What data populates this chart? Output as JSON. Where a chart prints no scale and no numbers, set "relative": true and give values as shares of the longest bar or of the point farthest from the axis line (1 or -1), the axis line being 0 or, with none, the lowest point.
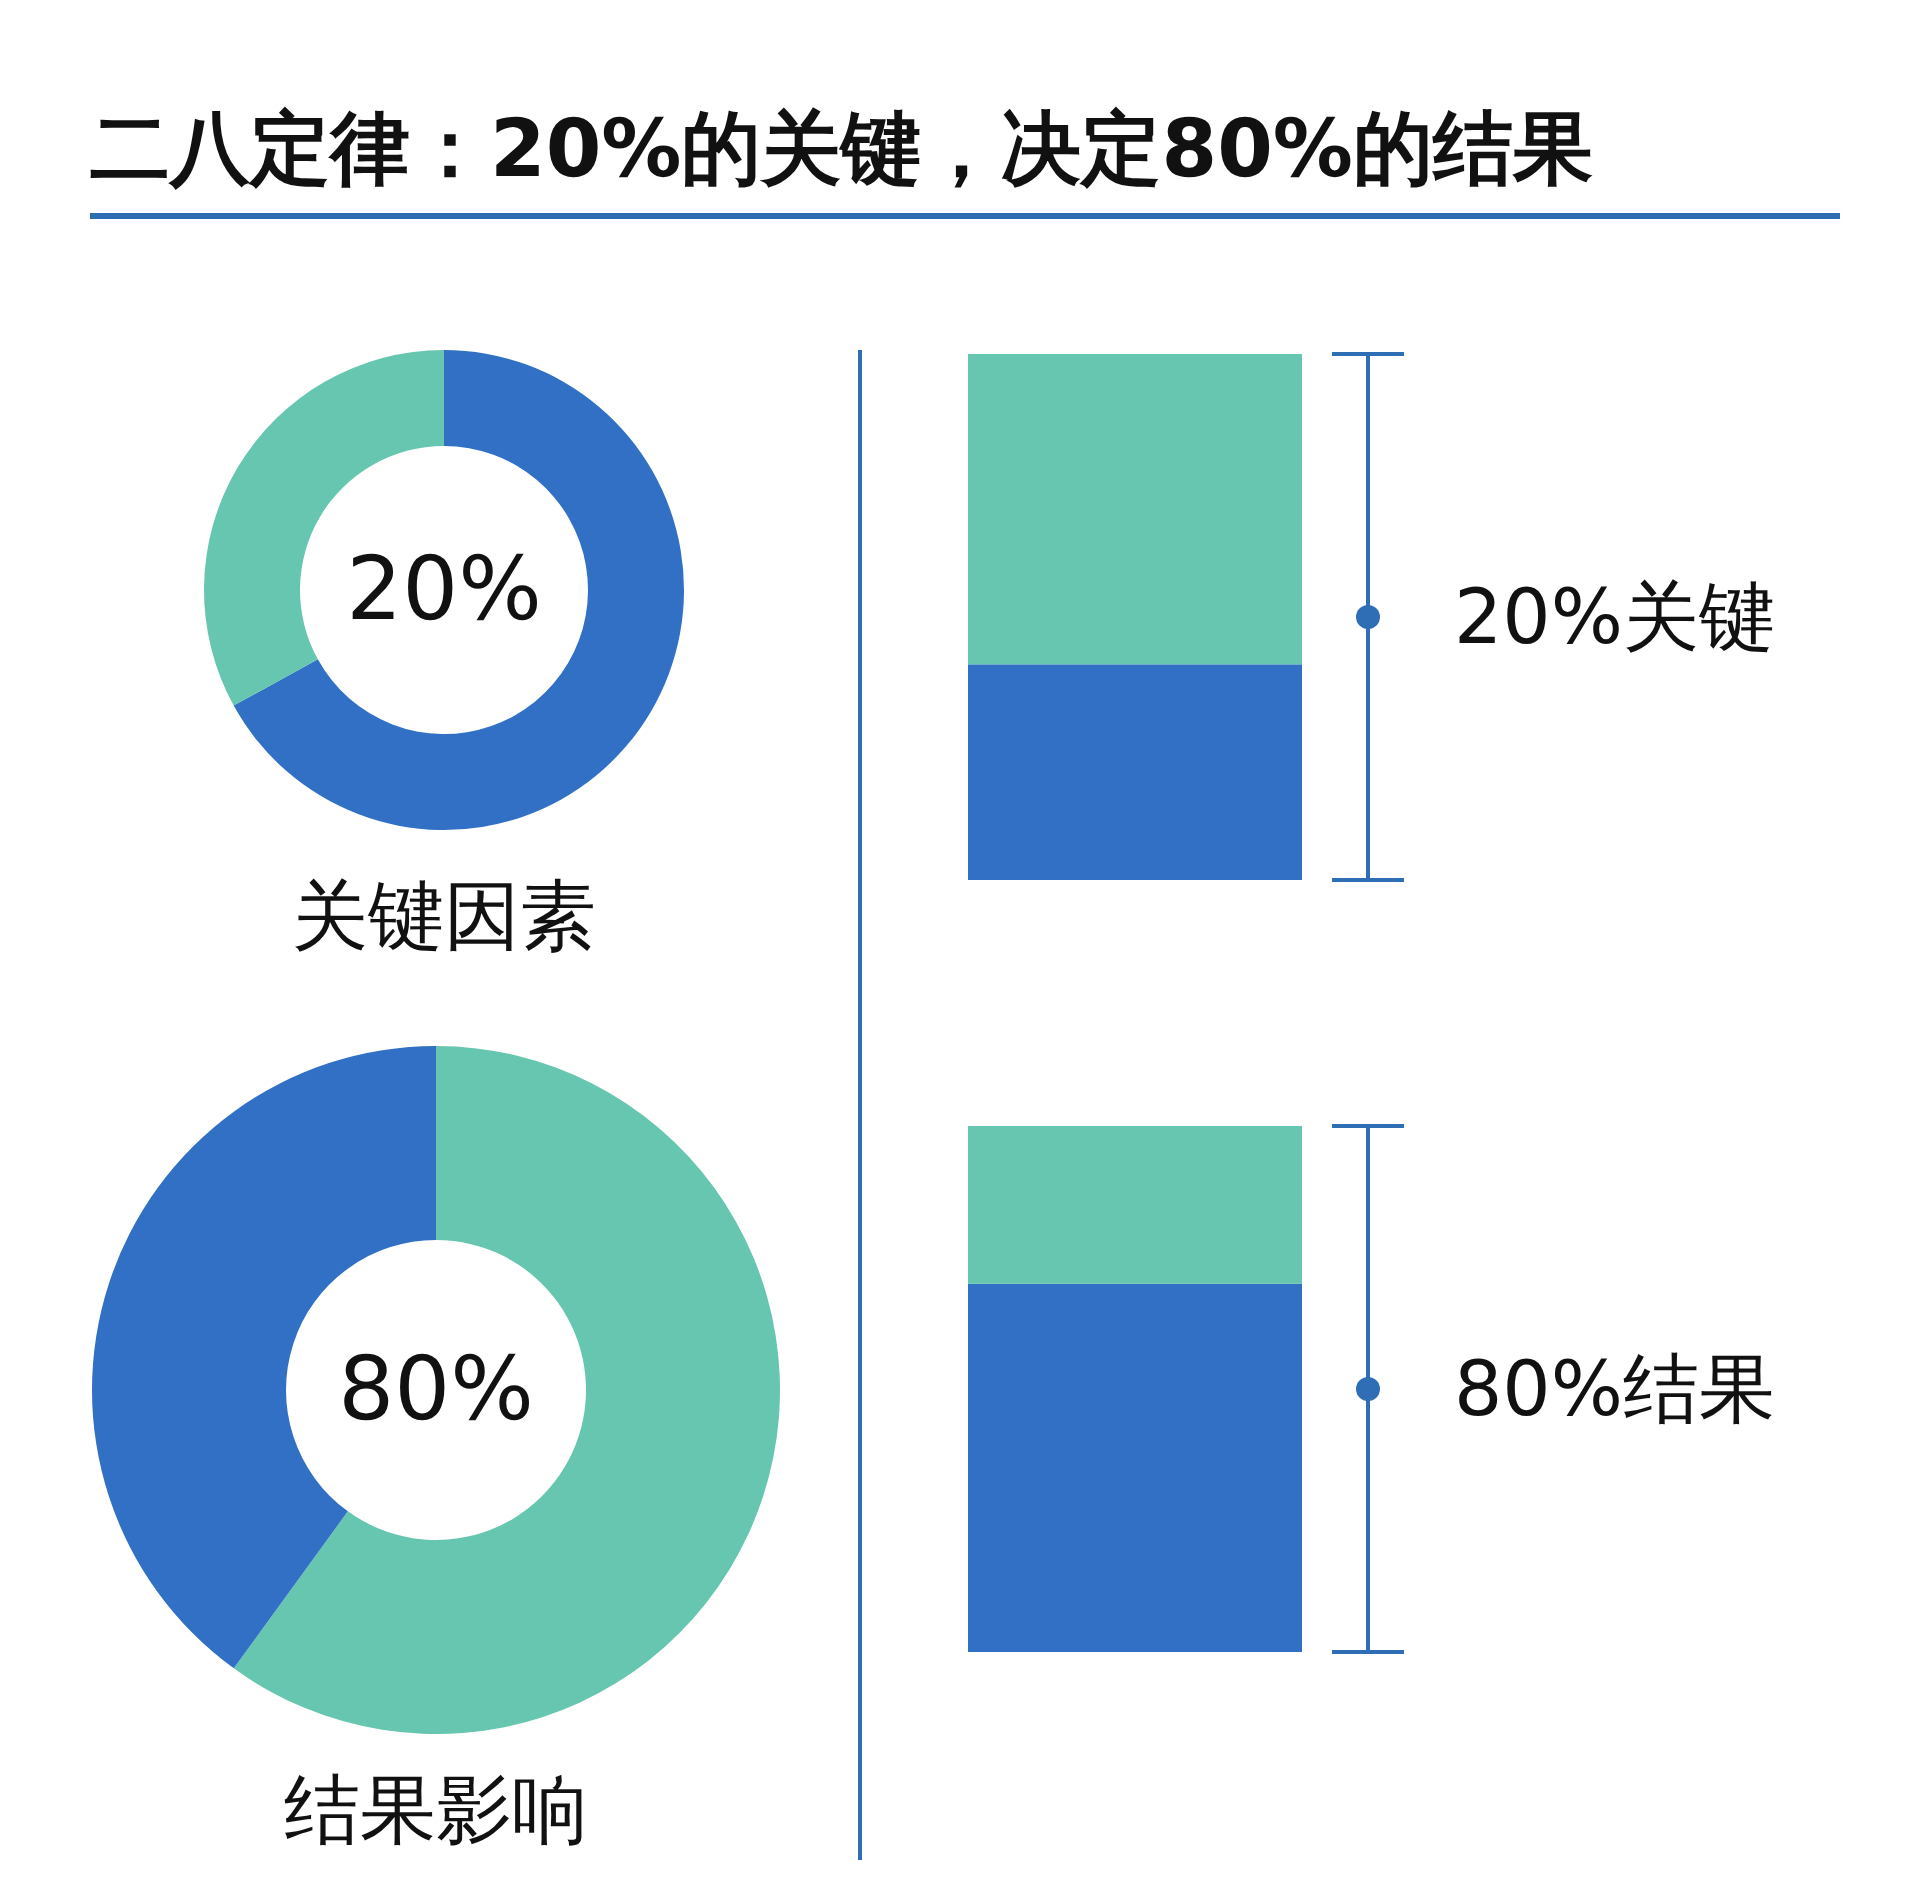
{
  "chart_data": [
    {
      "type": "donut",
      "title": "二八定律：20%的关键，决定80%的结果",
      "categories": [
        null,
        null
      ],
      "values": [
        67,
        33
      ],
      "colors": [
        "#3170c4",
        "#66c6b0"
      ],
      "annotations": [
        "20%",
        "关键因素"
      ]
    },
    {
      "type": "donut",
      "categories": [
        null,
        null
      ],
      "values": [
        60,
        40
      ],
      "colors": [
        "#66c6b0",
        "#3170c4"
      ],
      "annotations": [
        "80%",
        "结果影响"
      ]
    },
    {
      "type": "bar",
      "relative": true,
      "stacked": true,
      "categories": [
        null
      ],
      "series": [
        {
          "color": "#3170c4",
          "values": [
            0.41
          ]
        },
        {
          "color": "#66c6b0",
          "values": [
            0.59
          ]
        }
      ],
      "annotations": [
        "20%关键"
      ]
    },
    {
      "type": "bar",
      "relative": true,
      "stacked": true,
      "categories": [
        null
      ],
      "series": [
        {
          "color": "#3170c4",
          "values": [
            0.7
          ]
        },
        {
          "color": "#66c6b0",
          "values": [
            0.3
          ]
        }
      ],
      "annotations": [
        "80%结果"
      ]
    }
  ]
}
